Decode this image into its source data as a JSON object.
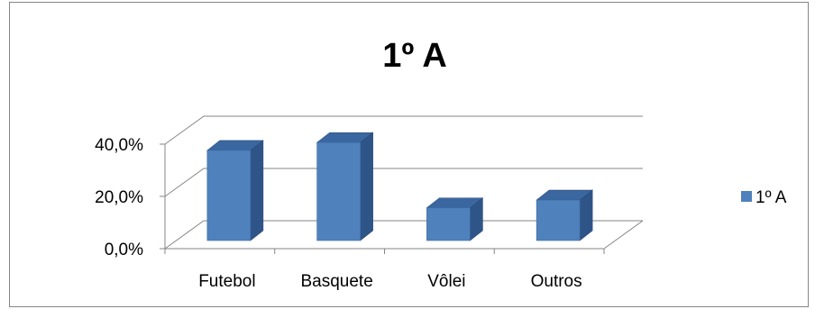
{
  "chart_data": {
    "type": "bar",
    "title": "1º A",
    "categories": [
      "Futebol",
      "Basquete",
      "Vôlei",
      "Outros"
    ],
    "series": [
      {
        "name": "1º A",
        "values": [
          34.5,
          37.5,
          12.5,
          15.5
        ],
        "color": "#4f81bd"
      }
    ],
    "y_tick_labels": [
      "0,0%",
      "20,0%",
      "40,0%"
    ],
    "y_ticks": [
      0,
      20,
      40
    ],
    "ylim": [
      0,
      40
    ],
    "grid": true,
    "legend_position": "right",
    "three_d": true
  }
}
